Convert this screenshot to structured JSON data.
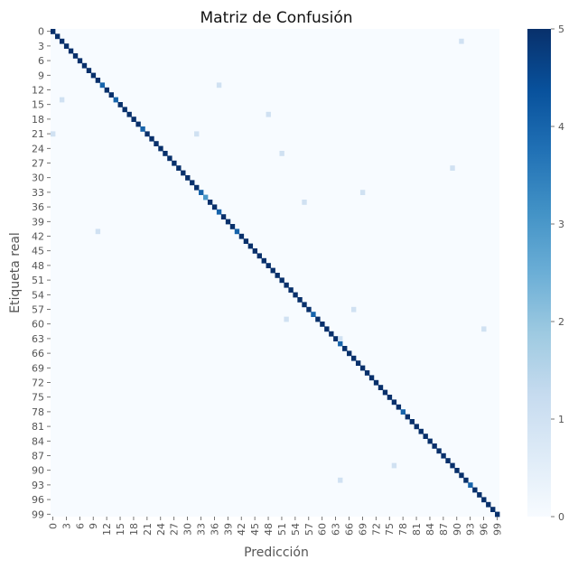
{
  "chart_data": {
    "type": "heatmap",
    "title": "Matriz de Confusión",
    "xlabel": "Predicción",
    "ylabel": "Etiqueta real",
    "n_classes": 100,
    "tick_labels": [
      "0",
      "3",
      "6",
      "9",
      "12",
      "15",
      "18",
      "21",
      "24",
      "27",
      "30",
      "33",
      "36",
      "39",
      "42",
      "45",
      "48",
      "51",
      "54",
      "57",
      "60",
      "63",
      "66",
      "69",
      "72",
      "75",
      "78",
      "81",
      "84",
      "87",
      "90",
      "93",
      "96",
      "99"
    ],
    "tick_values": [
      0,
      3,
      6,
      9,
      12,
      15,
      18,
      21,
      24,
      27,
      30,
      33,
      36,
      39,
      42,
      45,
      48,
      51,
      54,
      57,
      60,
      63,
      66,
      69,
      72,
      75,
      78,
      81,
      84,
      87,
      90,
      93,
      96,
      99
    ],
    "diagonal_default": 5,
    "diagonal_exceptions": [
      {
        "index": 11,
        "value": 4
      },
      {
        "index": 14,
        "value": 4
      },
      {
        "index": 20,
        "value": 4
      },
      {
        "index": 33,
        "value": 4
      },
      {
        "index": 34,
        "value": 3
      },
      {
        "index": 37,
        "value": 4
      },
      {
        "index": 41,
        "value": 4
      },
      {
        "index": 58,
        "value": 4
      },
      {
        "index": 64,
        "value": 4
      },
      {
        "index": 78,
        "value": 4
      },
      {
        "index": 93,
        "value": 4
      }
    ],
    "off_diagonal": [
      {
        "row": 2,
        "col": 91,
        "value": 1
      },
      {
        "row": 11,
        "col": 37,
        "value": 1
      },
      {
        "row": 14,
        "col": 2,
        "value": 1
      },
      {
        "row": 17,
        "col": 48,
        "value": 1
      },
      {
        "row": 21,
        "col": 0,
        "value": 1
      },
      {
        "row": 21,
        "col": 32,
        "value": 1
      },
      {
        "row": 25,
        "col": 51,
        "value": 1
      },
      {
        "row": 28,
        "col": 89,
        "value": 1
      },
      {
        "row": 33,
        "col": 69,
        "value": 1
      },
      {
        "row": 35,
        "col": 56,
        "value": 1
      },
      {
        "row": 41,
        "col": 10,
        "value": 1
      },
      {
        "row": 57,
        "col": 67,
        "value": 1
      },
      {
        "row": 59,
        "col": 52,
        "value": 1
      },
      {
        "row": 61,
        "col": 96,
        "value": 1
      },
      {
        "row": 63,
        "col": 64,
        "value": 1
      },
      {
        "row": 89,
        "col": 76,
        "value": 1
      },
      {
        "row": 92,
        "col": 64,
        "value": 1
      }
    ],
    "zlim": [
      0,
      5
    ],
    "colorbar_ticks": [
      "0",
      "1",
      "2",
      "3",
      "4",
      "5"
    ],
    "colormap": "Blues",
    "colors": {
      "low": "#f7fbff",
      "high": "#08306b"
    }
  }
}
